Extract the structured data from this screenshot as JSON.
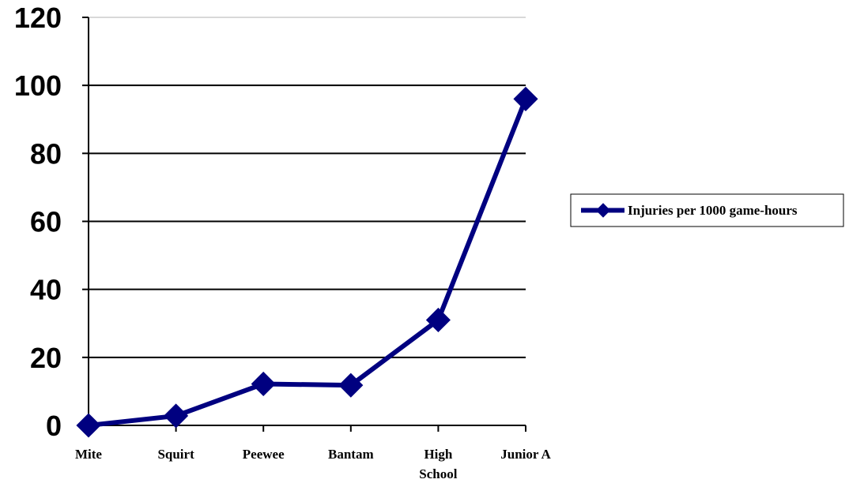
{
  "chart_data": {
    "type": "line",
    "title": "",
    "xlabel": "",
    "ylabel": "",
    "categories": [
      "Mite",
      "Squirt",
      "Peewee",
      "Bantam",
      "High School",
      "Junior A"
    ],
    "category_lines": [
      [
        "Mite"
      ],
      [
        "Squirt"
      ],
      [
        "Peewee"
      ],
      [
        "Bantam"
      ],
      [
        "High",
        "School"
      ],
      [
        "Junior A"
      ]
    ],
    "series": [
      {
        "name": "Injuries per 1000 game-hours",
        "values": [
          0,
          2.8,
          12.2,
          11.8,
          31,
          96
        ],
        "color": "#000080"
      }
    ],
    "ylim": [
      0,
      120
    ],
    "yticks": [
      0,
      20,
      40,
      60,
      80,
      100,
      120
    ],
    "grid": true,
    "legend": "right"
  }
}
